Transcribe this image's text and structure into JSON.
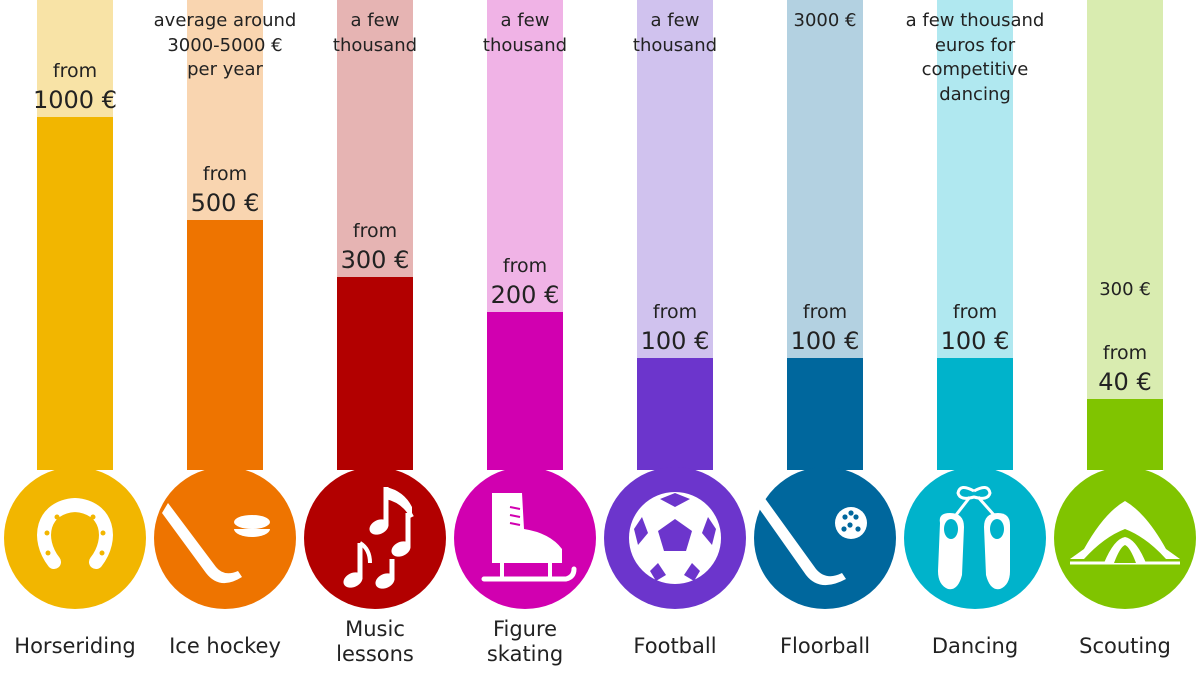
{
  "chart_data": {
    "type": "bar",
    "categories": [
      "Horseriding",
      "Ice hockey",
      "Music\nlessons",
      "Figure\nskating",
      "Football",
      "Floorball",
      "Dancing",
      "Scouting"
    ],
    "series": [
      {
        "values": [
          1000,
          500,
          300,
          200,
          100,
          100,
          100,
          40
        ],
        "labels": [
          "from\n1000 €",
          "from\n500 €",
          "from\n300 €",
          "from\n200 €",
          "from\n100 €",
          "from\n100 €",
          "from\n100 €",
          "from\n40 €"
        ]
      }
    ],
    "upper_labels": [
      "",
      "average around\n3000-5000 €\nper year",
      "a few\nthousand",
      "a few\nthousand",
      "a few\nthousand",
      "3000 €",
      "a few thousand\neuros for\ncompetitive\ndancing",
      "300 €"
    ],
    "icons": [
      "horseshoe-icon",
      "hockey-stick-puck-icon",
      "music-notes-icon",
      "ice-skate-icon",
      "football-icon",
      "floorball-stick-ball-icon",
      "ballet-shoes-icon",
      "tent-icon"
    ],
    "colors": {
      "dark": [
        "#f2b600",
        "#ee7400",
        "#b20000",
        "#d100b0",
        "#6c35cc",
        "#00679d",
        "#00b3cb",
        "#80c400"
      ],
      "light": [
        "#f8e3a6",
        "#f9d5b0",
        "#e6b4b3",
        "#f0b3e6",
        "#d0c2ee",
        "#b3d1e1",
        "#b0e8f0",
        "#d9ecb0"
      ]
    },
    "ylim": [
      0,
      1150
    ]
  }
}
